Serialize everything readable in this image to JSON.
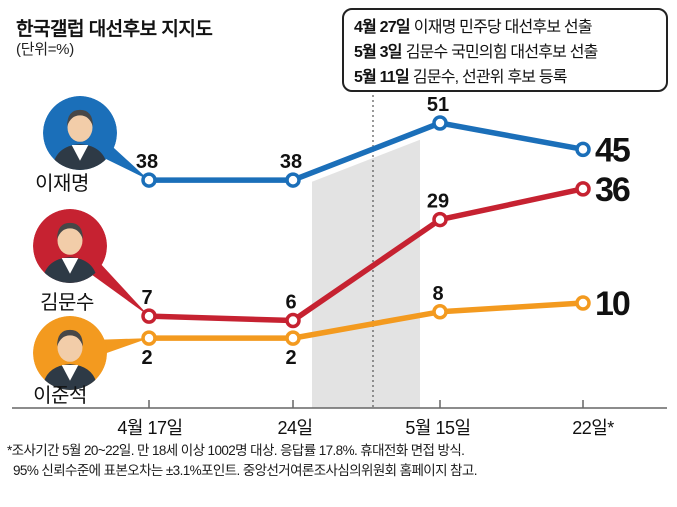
{
  "title": "한국갤럽 대선후보 지지도",
  "subtitle": "(단위=%)",
  "annotation_box": {
    "lines": [
      {
        "date": "4월 27일",
        "text": "이재명 민주당 대선후보 선출"
      },
      {
        "date": "5월 3일",
        "text": "김문수 국민의힘 대선후보 선출"
      },
      {
        "date": "5월 11일",
        "text": "김문수, 선관위 후보 등록"
      }
    ]
  },
  "chart_data": {
    "type": "line",
    "title": "한국갤럽 대선후보 지지도",
    "unit": "%",
    "categories": [
      "4월 17일",
      "24일",
      "5월 15일",
      "22일*"
    ],
    "series": [
      {
        "name": "이재명",
        "color": "#1b6fb9",
        "values": [
          38,
          38,
          51,
          45
        ]
      },
      {
        "name": "김문수",
        "color": "#c62231",
        "values": [
          7,
          6,
          29,
          36
        ]
      },
      {
        "name": "이준석",
        "color": "#f39a1f",
        "values": [
          2,
          2,
          8,
          10
        ]
      }
    ],
    "highlight_band": {
      "color": "#e3e3e3",
      "note": "period between 4월 24일 and 5월 15일 surveys covering candidate selection events"
    },
    "grid": false,
    "legend": "avatars on left side"
  },
  "footnote": {
    "line1": "*조사기간 5월 20~22일. 만 18세 이상 1002명 대상. 응답률 17.8%. 휴대전화 면접 방식.",
    "line2": "95% 신뢰수준에 표본오차는 ±3.1%포인트. 중앙선거여론조사심의위원회 홈페이지 참고."
  },
  "colors": {
    "band": "#e3e3e3",
    "axis": "#666666",
    "text": "#111111",
    "avatar_suit": "#2e3a46",
    "avatar_face": "#f2cda9",
    "avatar_hair": "#474747"
  }
}
